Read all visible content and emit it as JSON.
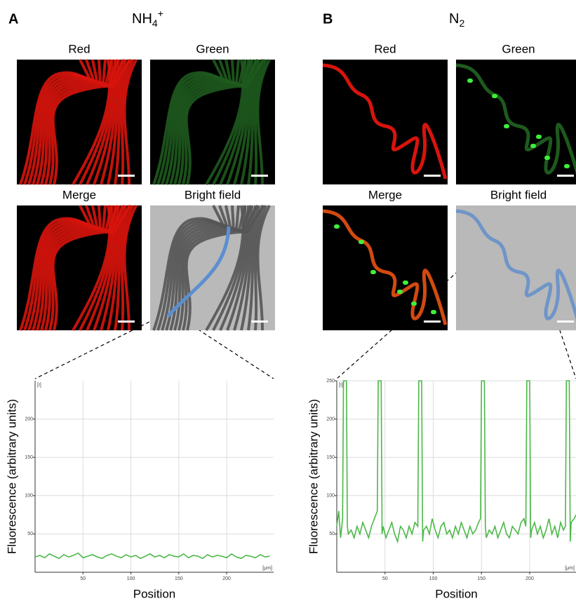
{
  "panels": [
    {
      "label": "A",
      "title": {
        "base": "NH",
        "sub": "4",
        "sup": "+"
      },
      "images": [
        "Red",
        "Green",
        "Merge",
        "Bright field"
      ]
    },
    {
      "label": "B",
      "title": {
        "base": "N",
        "sub": "2"
      },
      "images": [
        "Red",
        "Green",
        "Merge",
        "Bright field"
      ]
    }
  ],
  "chart_data": [
    {
      "type": "line",
      "x_label": "Position",
      "y_label": "Fluorescence (arbitrary units)",
      "x_unit_label": "[μm]",
      "y_unit_label": "[I]",
      "xlim": [
        0,
        249
      ],
      "ylim": [
        0,
        250
      ],
      "xticks": [
        50,
        100,
        150,
        200
      ],
      "yticks": [
        50,
        100,
        150,
        200
      ],
      "grid": true,
      "x": [
        0,
        5,
        10,
        15,
        20,
        25,
        30,
        35,
        40,
        45,
        50,
        55,
        60,
        65,
        70,
        75,
        80,
        85,
        90,
        95,
        100,
        105,
        110,
        115,
        120,
        125,
        130,
        135,
        140,
        145,
        150,
        155,
        160,
        165,
        170,
        175,
        180,
        185,
        190,
        195,
        200,
        205,
        210,
        215,
        220,
        225,
        230,
        235,
        240,
        245
      ],
      "series": [
        {
          "color": "#4cb848",
          "values": [
            20,
            22,
            19,
            24,
            21,
            18,
            23,
            20,
            22,
            25,
            19,
            21,
            23,
            20,
            18,
            22,
            24,
            21,
            19,
            23,
            20,
            22,
            18,
            21,
            24,
            20,
            22,
            19,
            23,
            21,
            20,
            24,
            19,
            22,
            21,
            18,
            23,
            20,
            22,
            21,
            19,
            24,
            20,
            18,
            22,
            21,
            19,
            23,
            20,
            21
          ]
        }
      ]
    },
    {
      "type": "line",
      "x_label": "Position",
      "y_label": "Fluorescence (arbitrary units)",
      "x_unit_label": "[μm]",
      "y_unit_label": "[I]",
      "xlim": [
        0,
        248
      ],
      "ylim": [
        0,
        250
      ],
      "xticks": [
        50,
        100,
        150,
        200
      ],
      "yticks": [
        50,
        100,
        150,
        200,
        250
      ],
      "grid": true,
      "x": [
        0,
        2,
        4,
        6,
        7,
        8,
        10,
        11,
        12,
        15,
        18,
        21,
        24,
        27,
        30,
        33,
        36,
        39,
        42,
        43,
        44,
        46,
        47,
        48,
        51,
        54,
        57,
        60,
        63,
        66,
        69,
        72,
        75,
        78,
        81,
        84,
        85,
        86,
        88,
        89,
        90,
        93,
        96,
        99,
        102,
        105,
        108,
        111,
        114,
        117,
        120,
        123,
        126,
        129,
        132,
        135,
        138,
        141,
        144,
        147,
        149,
        150,
        151,
        153,
        154,
        155,
        158,
        161,
        164,
        167,
        170,
        173,
        176,
        179,
        182,
        185,
        188,
        191,
        194,
        196,
        197,
        198,
        200,
        201,
        202,
        205,
        208,
        211,
        214,
        217,
        220,
        223,
        226,
        229,
        232,
        235,
        237,
        238,
        239,
        241,
        242,
        243,
        246,
        248
      ],
      "series": [
        {
          "color": "#4cb848",
          "values": [
            60,
            80,
            45,
            70,
            250,
            250,
            250,
            60,
            50,
            55,
            45,
            60,
            50,
            65,
            55,
            45,
            60,
            70,
            80,
            250,
            250,
            250,
            50,
            60,
            45,
            55,
            65,
            50,
            40,
            60,
            55,
            45,
            60,
            50,
            65,
            60,
            250,
            250,
            250,
            40,
            55,
            60,
            50,
            70,
            55,
            45,
            60,
            65,
            50,
            55,
            45,
            60,
            50,
            65,
            55,
            45,
            60,
            50,
            55,
            65,
            70,
            250,
            250,
            250,
            60,
            45,
            55,
            50,
            60,
            45,
            55,
            65,
            50,
            45,
            60,
            55,
            50,
            65,
            70,
            60,
            250,
            250,
            250,
            45,
            55,
            65,
            50,
            60,
            45,
            55,
            70,
            50,
            60,
            45,
            65,
            55,
            60,
            250,
            250,
            250,
            40,
            65,
            70,
            75
          ]
        }
      ]
    }
  ]
}
